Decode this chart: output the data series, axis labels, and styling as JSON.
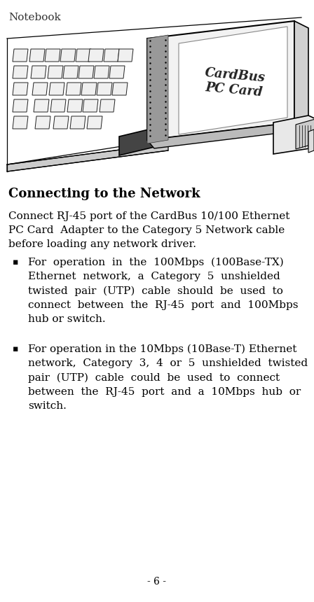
{
  "bg_color": "#ffffff",
  "title_text": "Connecting to the Network",
  "title_fontsize": 13,
  "body_font": "serif",
  "body_fontsize": 11,
  "notebook_label": "Notebook",
  "notebook_label_fontsize": 11,
  "page_number": "- 6 -",
  "page_number_fontsize": 10,
  "intro_text": "Connect RJ-45 port of the CardBus 10/100 Ethernet\nPC Card  Adapter to the Category 5 Network cable\nbefore loading any network driver.",
  "bullet1_line1": "For  operation  in  the  100Mbps  (100Base-TX)",
  "bullet1_line2": "Ethernet  network,  a  Category  5  unshielded",
  "bullet1_line3": "twisted  pair  (UTP)  cable  should  be  used  to",
  "bullet1_line4": "connect  between  the  RJ-45  port  and  100Mbps",
  "bullet1_line5": "hub or switch.",
  "bullet2_line1": "For operation in the 10Mbps (10Base-T) Ethernet",
  "bullet2_line2": "network,  Category  3,  4  or  5  unshielded  twisted",
  "bullet2_line3": "pair  (UTP)  cable  could  be  used  to  connect",
  "bullet2_line4": "between  the  RJ-45  port  and  a  10Mbps  hub  or",
  "bullet2_line5": "switch."
}
